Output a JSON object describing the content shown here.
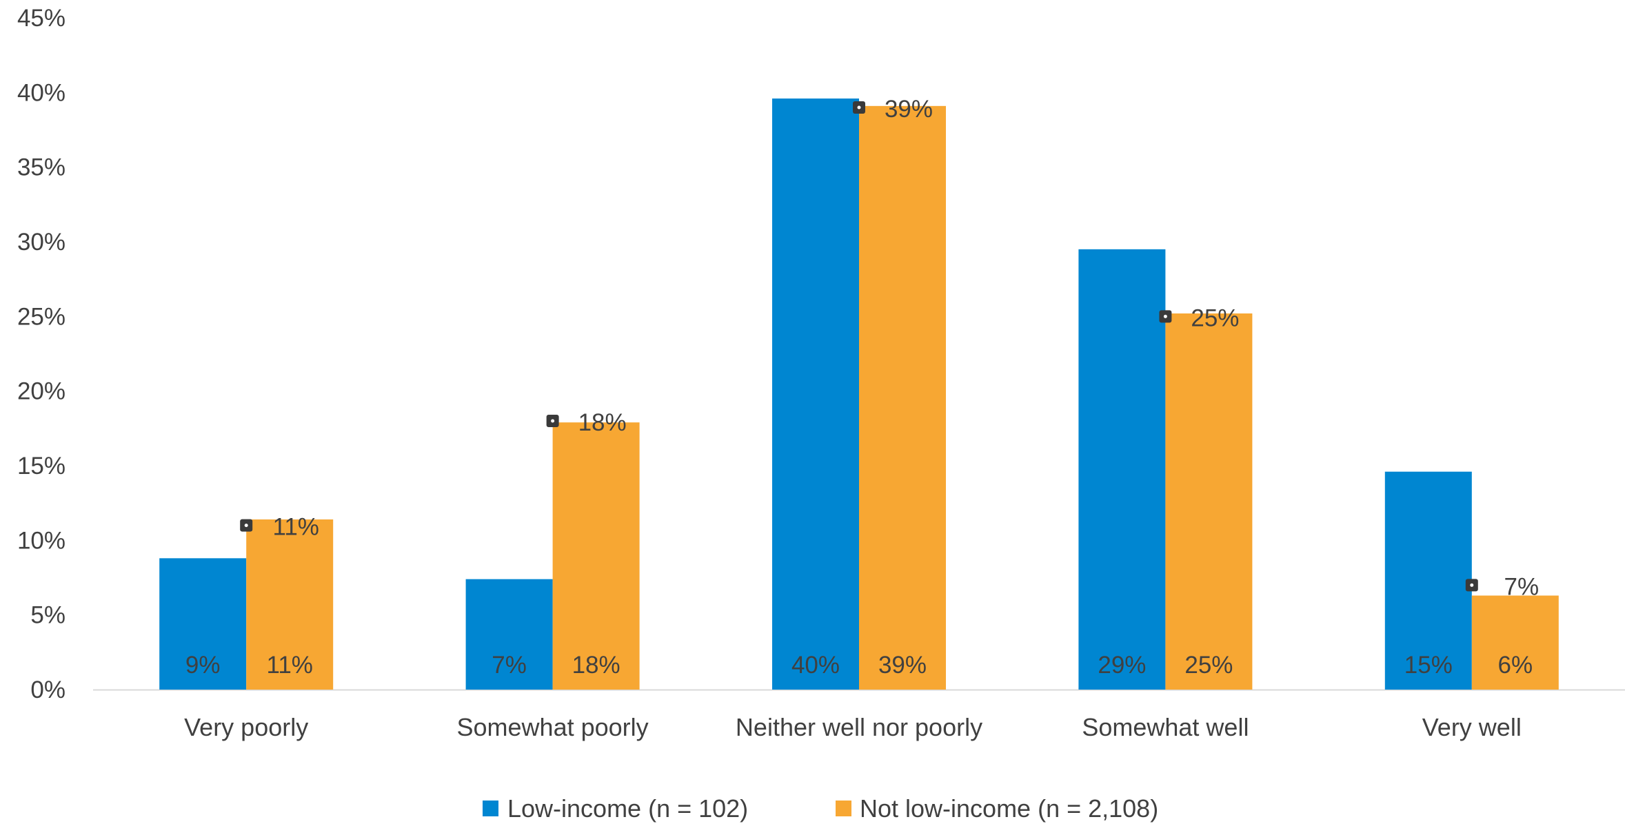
{
  "chart_data": {
    "type": "bar",
    "title": "",
    "xlabel": "",
    "ylabel": "",
    "ylim": [
      0,
      45
    ],
    "y_ticks": [
      "0%",
      "5%",
      "10%",
      "15%",
      "20%",
      "25%",
      "30%",
      "35%",
      "40%",
      "45%"
    ],
    "categories": [
      "Very poorly",
      "Somewhat poorly",
      "Neither well nor poorly",
      "Somewhat well",
      "Very well"
    ],
    "series": [
      {
        "name": "Low-income (n = 102)",
        "color": "#0086d1",
        "values": [
          8.8,
          7.4,
          39.6,
          29.5,
          14.6
        ],
        "labels": [
          "9%",
          "7%",
          "40%",
          "29%",
          "15%"
        ]
      },
      {
        "name": "Not low-income (n = 2,108)",
        "color": "#f7a733",
        "values": [
          11.4,
          17.9,
          39.1,
          25.2,
          6.3
        ],
        "labels": [
          "11%",
          "18%",
          "39%",
          "25%",
          "6%"
        ]
      }
    ],
    "markers": {
      "values": [
        11.0,
        18.0,
        39.0,
        25.0,
        7.0
      ],
      "labels": [
        "11%",
        "18%",
        "39%",
        "25%",
        "7%"
      ]
    },
    "grid": false,
    "legend_position": "bottom",
    "axis_color": "#d9d9d9",
    "text_color": "#404040"
  }
}
